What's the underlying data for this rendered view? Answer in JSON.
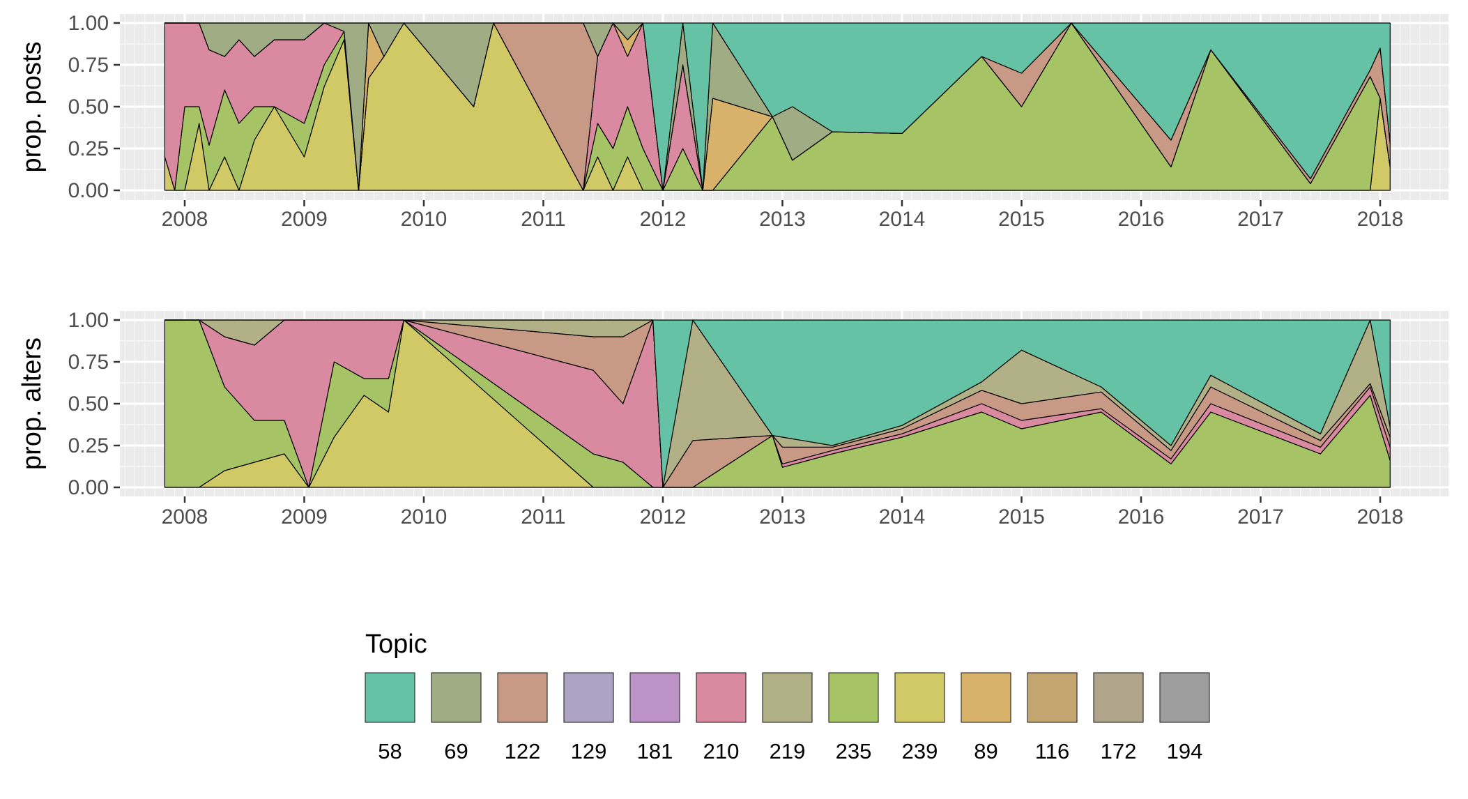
{
  "chart_data": {
    "type": "area",
    "stacked_percent": true,
    "x_unit": "date",
    "x_ticks": [
      "2008",
      "2009",
      "2010",
      "2011",
      "2012",
      "2013",
      "2014",
      "2015",
      "2016",
      "2017",
      "2018"
    ],
    "y_ticks": [
      "0.00",
      "0.25",
      "0.50",
      "0.75",
      "1.00"
    ],
    "ylim": [
      0,
      1
    ],
    "grid": true,
    "legend": {
      "title": "Topic",
      "placement": "bottom",
      "items": [
        {
          "label": "58",
          "color": "#66c2a5"
        },
        {
          "label": "69",
          "color": "#a0ac84"
        },
        {
          "label": "122",
          "color": "#c89984"
        },
        {
          "label": "129",
          "color": "#ada3c2"
        },
        {
          "label": "181",
          "color": "#bd92c6"
        },
        {
          "label": "210",
          "color": "#d98aa0"
        },
        {
          "label": "219",
          "color": "#b1b086"
        },
        {
          "label": "235",
          "color": "#a6c466"
        },
        {
          "label": "239",
          "color": "#d1c966"
        },
        {
          "label": "89",
          "color": "#d8b26a"
        },
        {
          "label": "116",
          "color": "#c3a570"
        },
        {
          "label": "172",
          "color": "#b0a48a"
        },
        {
          "label": "194",
          "color": "#9e9e9e"
        }
      ]
    },
    "panels": [
      {
        "ylabel": "prop. posts",
        "series_order": [
          "239",
          "235",
          "210",
          "89",
          "122",
          "69",
          "58"
        ],
        "points": [
          [
            "2007-11-01",
            0.2,
            0.0,
            0.8,
            0.0,
            0.0,
            0.0,
            0.0
          ],
          [
            "2007-12-01",
            0.0,
            0.0,
            1.0,
            0.0,
            0.0,
            0.0,
            0.0
          ],
          [
            "2008-01-01",
            0.0,
            0.5,
            0.5,
            0.0,
            0.0,
            0.0,
            0.0
          ],
          [
            "2008-02-15",
            0.4,
            0.1,
            0.5,
            0.0,
            0.0,
            0.0,
            0.0
          ],
          [
            "2008-03-15",
            0.0,
            0.27,
            0.57,
            0.0,
            0.0,
            0.16,
            0.0
          ],
          [
            "2008-05-01",
            0.2,
            0.4,
            0.2,
            0.0,
            0.0,
            0.2,
            0.0
          ],
          [
            "2008-06-15",
            0.0,
            0.4,
            0.5,
            0.0,
            0.0,
            0.1,
            0.0
          ],
          [
            "2008-08-01",
            0.3,
            0.2,
            0.3,
            0.0,
            0.0,
            0.2,
            0.0
          ],
          [
            "2008-10-01",
            0.5,
            0.0,
            0.4,
            0.0,
            0.0,
            0.1,
            0.0
          ],
          [
            "2009-01-01",
            0.2,
            0.2,
            0.5,
            0.0,
            0.0,
            0.1,
            0.0
          ],
          [
            "2009-03-01",
            0.62,
            0.13,
            0.25,
            0.0,
            0.0,
            0.0,
            0.0
          ],
          [
            "2009-05-01",
            0.9,
            0.05,
            0.0,
            0.0,
            0.0,
            0.05,
            0.0
          ],
          [
            "2009-06-15",
            0.0,
            0.0,
            0.0,
            0.0,
            0.0,
            1.0,
            0.0
          ],
          [
            "2009-07-15",
            0.67,
            0.0,
            0.0,
            0.33,
            0.0,
            0.0,
            0.0
          ],
          [
            "2009-09-01",
            0.8,
            0.0,
            0.0,
            0.0,
            0.0,
            0.2,
            0.0
          ],
          [
            "2009-11-01",
            1.0,
            0.0,
            0.0,
            0.0,
            0.0,
            0.0,
            0.0
          ],
          [
            "2010-06-01",
            0.5,
            0.0,
            0.0,
            0.0,
            0.0,
            0.5,
            0.0
          ],
          [
            "2010-08-01",
            1.0,
            0.0,
            0.0,
            0.0,
            0.0,
            0.0,
            0.0
          ],
          [
            "2011-05-01",
            0.0,
            0.0,
            0.0,
            0.0,
            1.0,
            0.0,
            0.0
          ],
          [
            "2011-06-15",
            0.2,
            0.2,
            0.4,
            0.0,
            0.0,
            0.2,
            0.0
          ],
          [
            "2011-08-01",
            0.0,
            0.25,
            0.75,
            0.0,
            0.0,
            0.0,
            0.0
          ],
          [
            "2011-09-15",
            0.2,
            0.3,
            0.3,
            0.1,
            0.0,
            0.1,
            0.0
          ],
          [
            "2011-11-01",
            0.0,
            0.25,
            0.75,
            0.0,
            0.0,
            0.0,
            0.0
          ],
          [
            "2012-01-01",
            0.0,
            0.0,
            0.0,
            0.0,
            0.0,
            0.0,
            1.0
          ],
          [
            "2012-03-01",
            0.0,
            0.25,
            0.5,
            0.0,
            0.0,
            0.25,
            0.0
          ],
          [
            "2012-05-01",
            0.0,
            0.0,
            0.0,
            0.0,
            0.0,
            0.0,
            1.0
          ],
          [
            "2012-06-01",
            0.0,
            0.0,
            0.0,
            0.55,
            0.0,
            0.45,
            0.0
          ],
          [
            "2012-12-01",
            0.0,
            0.44,
            0.0,
            0.0,
            0.0,
            0.0,
            0.56
          ],
          [
            "2013-02-01",
            0.0,
            0.18,
            0.0,
            0.0,
            0.0,
            0.32,
            0.5
          ],
          [
            "2013-06-01",
            0.0,
            0.35,
            0.0,
            0.0,
            0.0,
            0.0,
            0.65
          ],
          [
            "2014-01-01",
            0.0,
            0.34,
            0.0,
            0.0,
            0.0,
            0.0,
            0.66
          ],
          [
            "2014-09-01",
            0.0,
            0.8,
            0.0,
            0.0,
            0.0,
            0.0,
            0.2
          ],
          [
            "2015-01-01",
            0.0,
            0.5,
            0.0,
            0.0,
            0.2,
            0.0,
            0.3
          ],
          [
            "2015-06-01",
            0.0,
            1.0,
            0.0,
            0.0,
            0.0,
            0.0,
            0.0
          ],
          [
            "2016-04-01",
            0.0,
            0.14,
            0.0,
            0.0,
            0.16,
            0.0,
            0.7
          ],
          [
            "2016-08-01",
            0.0,
            0.84,
            0.0,
            0.0,
            0.0,
            0.0,
            0.16
          ],
          [
            "2017-06-01",
            0.0,
            0.04,
            0.0,
            0.0,
            0.03,
            0.0,
            0.93
          ],
          [
            "2017-12-01",
            0.0,
            0.68,
            0.0,
            0.0,
            0.04,
            0.0,
            0.28
          ],
          [
            "2018-01-01",
            0.55,
            0.0,
            0.0,
            0.0,
            0.3,
            0.0,
            0.15
          ],
          [
            "2018-02-01",
            0.14,
            0.0,
            0.0,
            0.0,
            0.14,
            0.0,
            0.72
          ]
        ]
      },
      {
        "ylabel": "prop. alters",
        "series_order": [
          "239",
          "235",
          "210",
          "122",
          "219",
          "58"
        ],
        "points": [
          [
            "2007-11-01",
            0.0,
            1.0,
            0.0,
            0.0,
            0.0,
            0.0
          ],
          [
            "2008-02-15",
            0.0,
            1.0,
            0.0,
            0.0,
            0.0,
            0.0
          ],
          [
            "2008-05-01",
            0.1,
            0.5,
            0.3,
            0.0,
            0.1,
            0.0
          ],
          [
            "2008-08-01",
            0.15,
            0.25,
            0.45,
            0.0,
            0.15,
            0.0
          ],
          [
            "2008-11-01",
            0.2,
            0.2,
            0.6,
            0.0,
            0.0,
            0.0
          ],
          [
            "2009-01-15",
            0.0,
            0.0,
            1.0,
            0.0,
            0.0,
            0.0
          ],
          [
            "2009-04-01",
            0.3,
            0.45,
            0.25,
            0.0,
            0.0,
            0.0
          ],
          [
            "2009-07-01",
            0.55,
            0.1,
            0.35,
            0.0,
            0.0,
            0.0
          ],
          [
            "2009-09-15",
            0.45,
            0.2,
            0.35,
            0.0,
            0.0,
            0.0
          ],
          [
            "2009-11-01",
            1.0,
            0.0,
            0.0,
            0.0,
            0.0,
            0.0
          ],
          [
            "2011-06-01",
            0.0,
            0.2,
            0.5,
            0.2,
            0.1,
            0.0
          ],
          [
            "2011-09-01",
            0.0,
            0.15,
            0.35,
            0.4,
            0.1,
            0.0
          ],
          [
            "2011-12-01",
            0.0,
            0.0,
            1.0,
            0.0,
            0.0,
            0.0
          ],
          [
            "2012-01-01",
            0.0,
            0.0,
            0.0,
            0.0,
            0.0,
            1.0
          ],
          [
            "2012-04-01",
            0.0,
            0.0,
            0.0,
            0.28,
            0.72,
            0.0
          ],
          [
            "2012-12-01",
            0.0,
            0.31,
            0.0,
            0.0,
            0.0,
            0.69
          ],
          [
            "2013-01-01",
            0.0,
            0.12,
            0.02,
            0.1,
            0.06,
            0.7
          ],
          [
            "2013-06-01",
            0.0,
            0.2,
            0.02,
            0.02,
            0.01,
            0.75
          ],
          [
            "2014-01-01",
            0.0,
            0.3,
            0.02,
            0.03,
            0.02,
            0.63
          ],
          [
            "2014-09-01",
            0.0,
            0.45,
            0.05,
            0.08,
            0.05,
            0.37
          ],
          [
            "2015-01-01",
            0.0,
            0.35,
            0.05,
            0.1,
            0.32,
            0.18
          ],
          [
            "2015-09-01",
            0.0,
            0.45,
            0.02,
            0.1,
            0.03,
            0.4
          ],
          [
            "2016-04-01",
            0.0,
            0.14,
            0.03,
            0.05,
            0.03,
            0.75
          ],
          [
            "2016-08-01",
            0.0,
            0.45,
            0.05,
            0.1,
            0.07,
            0.33
          ],
          [
            "2017-07-01",
            0.0,
            0.2,
            0.04,
            0.04,
            0.04,
            0.68
          ],
          [
            "2017-12-01",
            0.0,
            0.55,
            0.05,
            0.02,
            0.38,
            0.0
          ],
          [
            "2018-02-01",
            0.0,
            0.16,
            0.08,
            0.06,
            0.06,
            0.64
          ]
        ]
      }
    ]
  }
}
